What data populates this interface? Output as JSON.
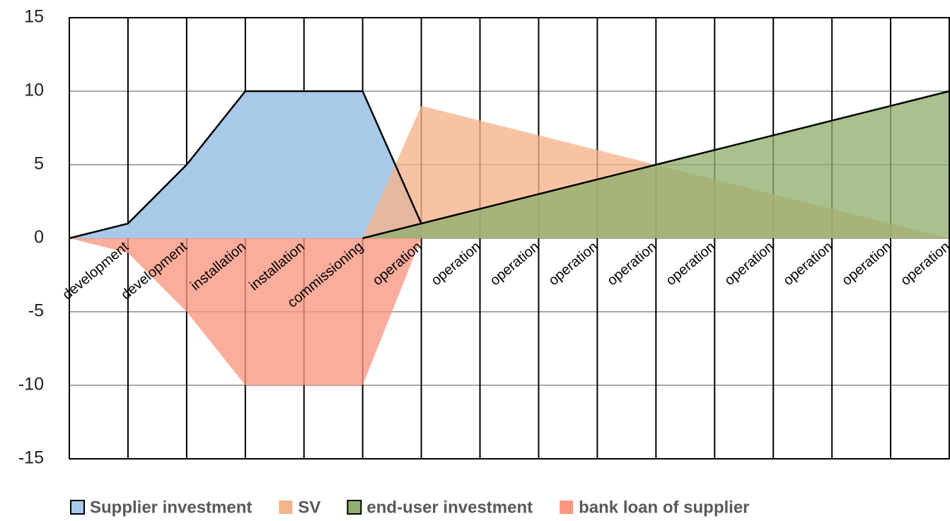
{
  "chart_data": {
    "type": "area",
    "categories": [
      null,
      "development",
      "development",
      "installation",
      "installation",
      "commissioning",
      "operation",
      "operation",
      "operation",
      "operation",
      "operation",
      "operation",
      "operation",
      "operation",
      "operation",
      "operation"
    ],
    "series": [
      {
        "name": "Supplier investment",
        "color": "#a9c9e9",
        "edgecolor": "#000000",
        "values": [
          0,
          1,
          5,
          10,
          10,
          10,
          1,
          null,
          null,
          null,
          null,
          null,
          null,
          null,
          null,
          null
        ]
      },
      {
        "name": "SV",
        "color": "#f4b48a",
        "edgecolor": null,
        "values": [
          null,
          null,
          null,
          null,
          null,
          0,
          9,
          8,
          7,
          6,
          5,
          4,
          3,
          2,
          1,
          0
        ]
      },
      {
        "name": "end-user investment",
        "color": "#8fb06e",
        "edgecolor": "#000000",
        "values": [
          null,
          null,
          null,
          null,
          null,
          0,
          1,
          2,
          3,
          4,
          5,
          6,
          7,
          8,
          9,
          10
        ]
      },
      {
        "name": "bank loan of supplier",
        "color": "#fa9680",
        "edgecolor": null,
        "values": [
          0,
          -1,
          -5,
          -10,
          -10,
          -10,
          0,
          null,
          null,
          null,
          null,
          null,
          null,
          null,
          null,
          null
        ]
      }
    ],
    "ylim": [
      -15,
      15
    ],
    "yticks": [
      -15,
      -10,
      -5,
      0,
      5,
      10,
      15
    ],
    "grid": true,
    "legend": "bottom"
  }
}
